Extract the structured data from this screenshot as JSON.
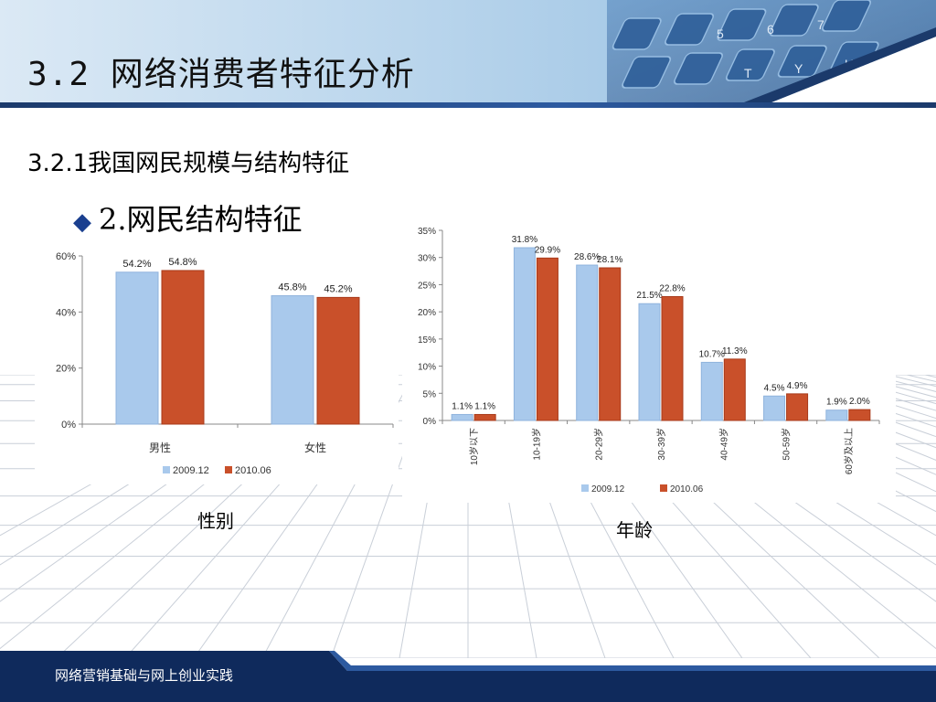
{
  "slide": {
    "title": "3.2 网络消费者特征分析",
    "subtitle": "3.2.1我国网民规模与结构特征",
    "bullet": "2.网民结构特征",
    "footer": "网络营销基础与网上创业实践"
  },
  "colors": {
    "series_2009": "#a9c9ec",
    "series_2010": "#c9502a",
    "header_dark": "#1b3a6b",
    "footer_dark": "#0f2a5c"
  },
  "icons": {
    "bullet": "diamond-icon"
  },
  "chart_data": [
    {
      "type": "bar",
      "caption": "性别",
      "categories": [
        "男性",
        "女性"
      ],
      "series": [
        {
          "name": "2009.12",
          "values": [
            54.2,
            45.8
          ],
          "labels": [
            "54.2%",
            "45.8%"
          ]
        },
        {
          "name": "2010.06",
          "values": [
            54.8,
            45.2
          ],
          "labels": [
            "54.8%",
            "45.2%"
          ]
        }
      ],
      "ylim": [
        0,
        60
      ],
      "yticks": [
        "0%",
        "20%",
        "40%",
        "60%"
      ],
      "ytick_values": [
        0,
        20,
        40,
        60
      ],
      "legend": "bottom",
      "grid": false
    },
    {
      "type": "bar",
      "caption": "年龄",
      "categories": [
        "10岁以下",
        "10-19岁",
        "20-29岁",
        "30-39岁",
        "40-49岁",
        "50-59岁",
        "60岁及以上"
      ],
      "series": [
        {
          "name": "2009.12",
          "values": [
            1.1,
            31.8,
            28.6,
            21.5,
            10.7,
            4.5,
            1.9
          ],
          "labels": [
            "1.1%",
            "31.8%",
            "28.6%",
            "21.5%",
            "10.7%",
            "4.5%",
            "1.9%"
          ]
        },
        {
          "name": "2010.06",
          "values": [
            1.1,
            29.9,
            28.1,
            22.8,
            11.3,
            4.9,
            2.0
          ],
          "labels": [
            "1.1%",
            "29.9%",
            "28.1%",
            "22.8%",
            "11.3%",
            "4.9%",
            "2.0%"
          ]
        }
      ],
      "ylim": [
        0,
        35
      ],
      "yticks": [
        "0%",
        "5%",
        "10%",
        "15%",
        "20%",
        "25%",
        "30%",
        "35%"
      ],
      "ytick_values": [
        0,
        5,
        10,
        15,
        20,
        25,
        30,
        35
      ],
      "legend": "bottom",
      "grid": false
    }
  ]
}
